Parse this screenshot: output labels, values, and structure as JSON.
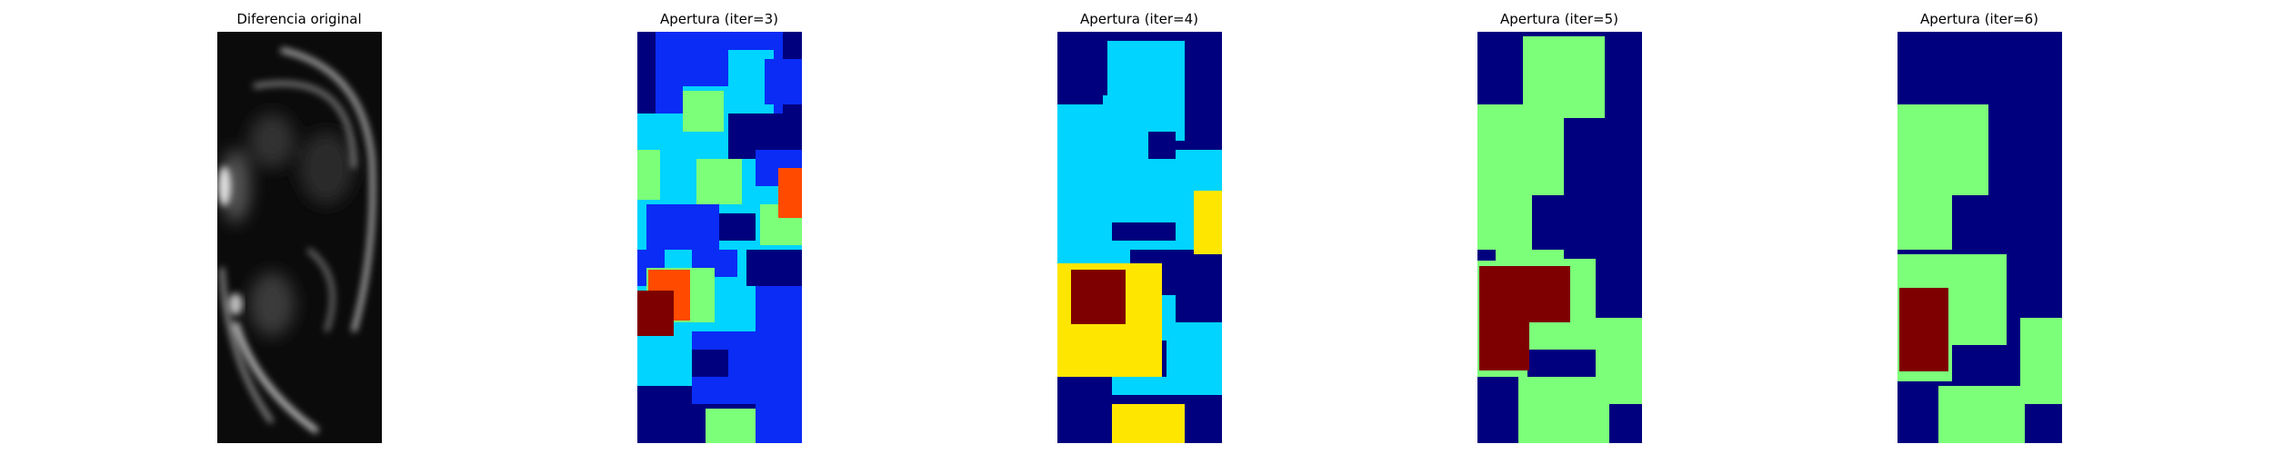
{
  "figure": {
    "panels": [
      {
        "title": "Diferencia original",
        "kind": "grayscale-image"
      },
      {
        "title": "Apertura (iter=3)",
        "kind": "jet-label-image"
      },
      {
        "title": "Apertura (iter=4)",
        "kind": "jet-label-image"
      },
      {
        "title": "Apertura (iter=5)",
        "kind": "jet-label-image"
      },
      {
        "title": "Apertura (iter=6)",
        "kind": "jet-label-image"
      }
    ]
  },
  "colors": {
    "navy": "#00007f",
    "blue": "#0a2cf5",
    "cyan": "#00d4ff",
    "green": "#7cff79",
    "yellow": "#ffe600",
    "orange": "#ff4a00",
    "maroon": "#7f0000"
  }
}
